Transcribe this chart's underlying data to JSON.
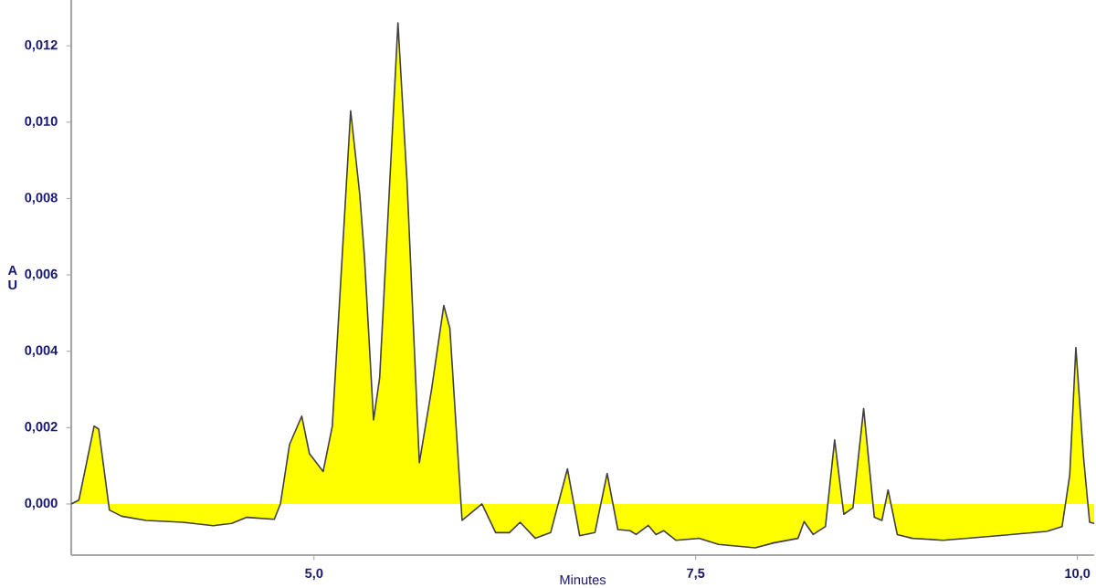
{
  "chart_data": {
    "type": "area",
    "xlabel": "Minutes",
    "ylabel": "A U",
    "xlim": [
      3.41,
      10.11
    ],
    "ylim": [
      -0.00134,
      0.0132
    ],
    "xticks": [
      {
        "value": 5,
        "label": "5,0"
      },
      {
        "value": 7.5,
        "label": "7,5"
      },
      {
        "value": 10,
        "label": "10,0"
      }
    ],
    "yticks": [
      {
        "value": 0,
        "label": "0,000"
      },
      {
        "value": 0.002,
        "label": "0,002"
      },
      {
        "value": 0.004,
        "label": "0,004"
      },
      {
        "value": 0.006,
        "label": "0,006"
      },
      {
        "value": 0.008,
        "label": "0,008"
      },
      {
        "value": 0.01,
        "label": "0,010"
      },
      {
        "value": 0.012,
        "label": "0,012"
      }
    ],
    "grid": false,
    "series": [
      {
        "color": "#ffff00",
        "x": [
          3.41,
          3.46,
          3.56,
          3.59,
          3.66,
          3.74,
          3.9,
          4.14,
          4.34,
          4.46,
          4.56,
          4.74,
          4.78,
          4.84,
          4.92,
          4.97,
          5.06,
          5.12,
          5.24,
          5.3,
          5.33,
          5.39,
          5.43,
          5.55,
          5.61,
          5.69,
          5.77,
          5.85,
          5.89,
          5.97,
          6.1,
          6.19,
          6.28,
          6.35,
          6.45,
          6.55,
          6.66,
          6.74,
          6.84,
          6.92,
          6.99,
          7.07,
          7.11,
          7.19,
          7.24,
          7.29,
          7.37,
          7.52,
          7.65,
          7.89,
          8.01,
          8.17,
          8.21,
          8.27,
          8.35,
          8.41,
          8.47,
          8.53,
          8.6,
          8.67,
          8.72,
          8.76,
          8.82,
          8.92,
          9.12,
          9.48,
          9.8,
          9.9,
          9.95,
          9.99,
          10.04,
          10.08,
          10.11
        ],
        "values": [
          0,
          0.0001,
          0.00204,
          0.00196,
          -0.00016,
          -0.00032,
          -0.00043,
          -0.00048,
          -0.00057,
          -0.00051,
          -0.00035,
          -0.0004,
          0,
          0.00156,
          0.0023,
          0.00132,
          0.00085,
          0.00204,
          0.0103,
          0.0081,
          0.0065,
          0.0022,
          0.0033,
          0.0126,
          0.0084,
          0.00108,
          0.003,
          0.0052,
          0.0046,
          -0.00043,
          0,
          -0.00075,
          -0.00075,
          -0.00048,
          -0.0009,
          -0.00075,
          0.00092,
          -0.00083,
          -0.00075,
          0.0008,
          -0.00067,
          -0.0007,
          -0.0008,
          -0.00056,
          -0.0008,
          -0.0007,
          -0.00095,
          -0.0009,
          -0.00106,
          -0.00115,
          -0.00102,
          -0.0009,
          -0.00046,
          -0.0008,
          -0.00059,
          0.00168,
          -0.00027,
          -0.0001,
          0.0025,
          -0.00035,
          -0.00043,
          0.00037,
          -0.0008,
          -0.0009,
          -0.00095,
          -0.00083,
          -0.00072,
          -0.00059,
          0.00076,
          0.0041,
          0.00124,
          -0.00048,
          -0.00051
        ]
      }
    ]
  }
}
